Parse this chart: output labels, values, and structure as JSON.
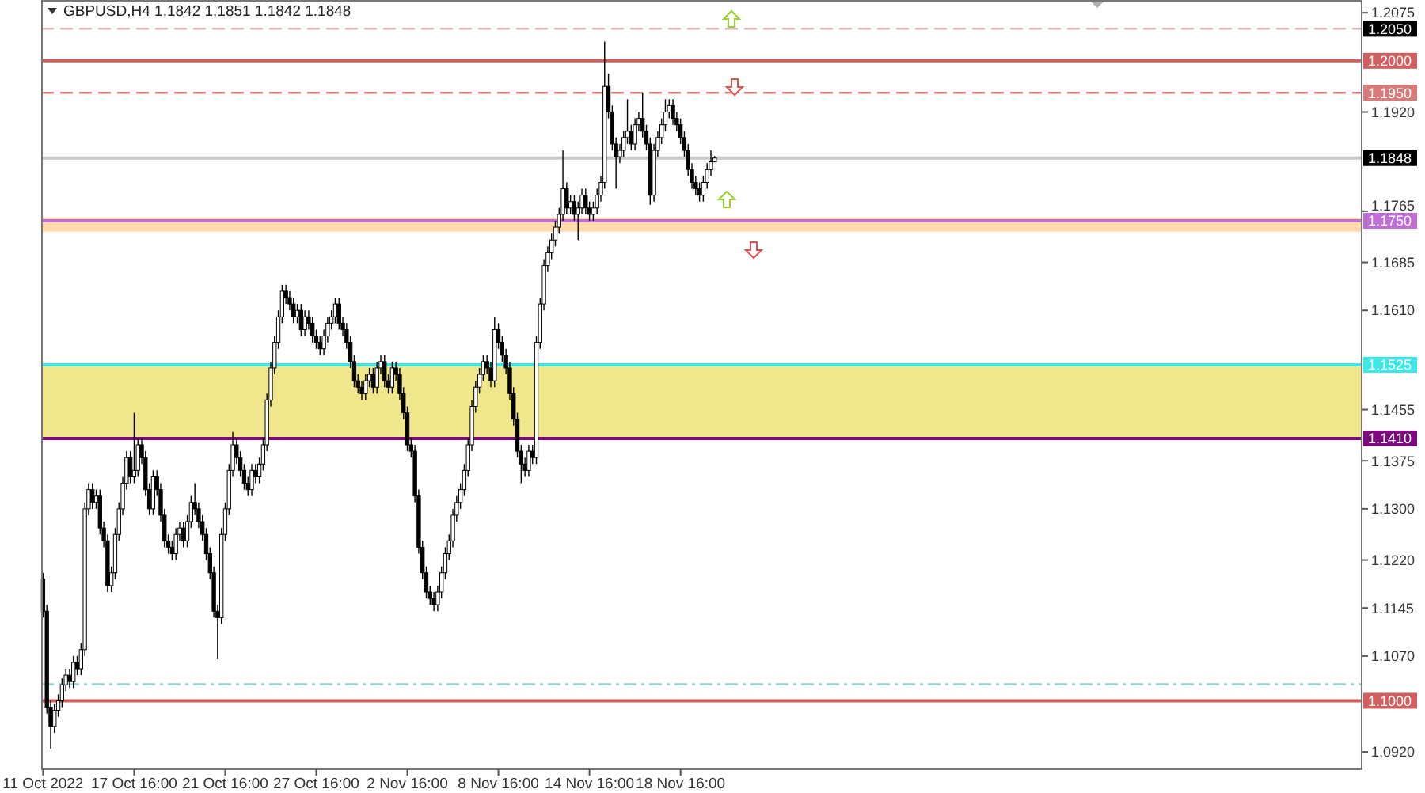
{
  "chart_data": {
    "type": "candlestick",
    "title": "GBPUSD,H4  1.1842 1.1851 1.1842 1.1848",
    "color": "#000000",
    "ylim": [
      1.0893,
      1.2095
    ],
    "yticks": [
      1.2075,
      {
        "value": 1.192,
        "label": "1.1920"
      },
      1.1765,
      1.1685,
      {
        "value": 1.161,
        "label": "1.1610"
      },
      1.1455,
      1.1375,
      {
        "value": 1.13,
        "label": "1.1300"
      },
      {
        "value": 1.122,
        "label": "1.1220"
      },
      1.1145,
      {
        "value": 1.107,
        "label": "1.1070"
      },
      {
        "value": 1.092,
        "label": "1.0920"
      }
    ],
    "grid": false,
    "categories": [
      "11 Oct 2022",
      null,
      null,
      null,
      null,
      null,
      null,
      null,
      null,
      null,
      null,
      null,
      null,
      null,
      null,
      null,
      null,
      null,
      null,
      null,
      null,
      null,
      null,
      null,
      "17 Oct 16:00",
      null,
      null,
      null,
      null,
      null,
      null,
      null,
      null,
      null,
      null,
      null,
      null,
      null,
      null,
      null,
      null,
      null,
      null,
      null,
      null,
      null,
      null,
      null,
      "21 Oct 16:00",
      null,
      null,
      null,
      null,
      null,
      null,
      null,
      null,
      null,
      null,
      null,
      null,
      null,
      null,
      null,
      null,
      null,
      null,
      null,
      null,
      null,
      null,
      null,
      "27 Oct 16:00",
      null,
      null,
      null,
      null,
      null,
      null,
      null,
      null,
      null,
      null,
      null,
      null,
      null,
      null,
      null,
      null,
      null,
      null,
      null,
      null,
      null,
      null,
      null,
      "2 Nov 16:00",
      null,
      null,
      null,
      null,
      null,
      null,
      null,
      null,
      null,
      null,
      null,
      null,
      null,
      null,
      null,
      null,
      null,
      null,
      null,
      null,
      null,
      null,
      null,
      "8 Nov 16:00",
      null,
      null,
      null,
      null,
      null,
      null,
      null,
      null,
      null,
      null,
      null,
      null,
      null,
      null,
      null,
      null,
      null,
      null,
      null,
      null,
      null,
      null,
      null,
      "14 Nov 16:00",
      null,
      null,
      null,
      null,
      null,
      null,
      null,
      null,
      null,
      null,
      null,
      null,
      null,
      null,
      null,
      null,
      null,
      null,
      null,
      null,
      null,
      null,
      null,
      "18 Nov 16:00",
      null,
      null,
      null,
      null,
      null,
      null,
      null,
      null,
      null,
      null,
      null,
      null,
      null,
      null,
      null,
      null,
      null,
      null,
      null,
      null,
      null,
      null,
      null,
      null,
      null,
      null,
      null,
      null,
      null,
      null,
      null,
      null,
      null,
      null,
      null,
      null,
      null,
      null,
      null,
      null,
      null,
      null,
      null,
      null,
      null,
      null,
      null,
      null,
      null,
      null,
      null,
      null,
      null,
      null,
      null,
      null,
      null,
      null,
      null,
      null,
      null,
      null,
      null,
      null,
      null,
      null,
      null,
      null,
      null,
      null,
      null,
      null,
      null,
      null,
      null,
      null,
      null,
      null,
      null,
      null,
      null,
      null,
      null,
      null,
      null,
      null,
      null,
      null,
      null,
      null,
      null,
      null,
      null,
      null,
      null,
      null,
      null,
      null,
      null,
      null,
      null,
      null,
      null,
      null,
      null,
      null,
      null,
      null,
      null,
      null,
      null,
      null,
      null,
      null,
      null,
      null,
      null,
      null,
      null,
      null,
      null,
      null,
      null,
      null,
      null,
      null,
      null,
      null,
      null,
      null,
      null,
      null,
      null,
      null,
      null,
      null,
      null,
      null,
      null,
      null,
      null,
      null,
      null,
      null,
      null,
      null,
      null,
      null,
      null,
      null,
      null,
      null,
      null,
      null,
      null,
      null,
      null,
      null,
      null,
      null,
      null,
      null,
      null,
      null,
      null,
      null,
      null,
      null,
      null,
      null,
      null,
      null,
      null,
      null,
      null,
      null,
      null,
      null,
      null
    ],
    "ohlc": [
      [
        1.119,
        1.12,
        1.113,
        1.114
      ],
      [
        1.114,
        1.115,
        1.098,
        1.099
      ],
      [
        1.099,
        1.1,
        1.0925,
        1.096
      ],
      [
        1.096,
        1.0995,
        1.095,
        1.0985
      ],
      [
        1.0985,
        1.101,
        1.0975,
        1.1
      ],
      [
        1.1,
        1.1035,
        1.099,
        1.1025
      ],
      [
        1.1025,
        1.105,
        1.1015,
        1.104
      ],
      [
        1.104,
        1.105,
        1.102,
        1.103
      ],
      [
        1.103,
        1.107,
        1.102,
        1.106
      ],
      [
        1.106,
        1.107,
        1.104,
        1.105
      ],
      [
        1.105,
        1.109,
        1.104,
        1.108
      ],
      [
        1.108,
        1.131,
        1.107,
        1.13
      ],
      [
        1.13,
        1.134,
        1.129,
        1.133
      ],
      [
        1.133,
        1.134,
        1.13,
        1.131
      ],
      [
        1.131,
        1.133,
        1.13,
        1.132
      ],
      [
        1.132,
        1.133,
        1.126,
        1.127
      ],
      [
        1.127,
        1.128,
        1.124,
        1.125
      ],
      [
        1.125,
        1.126,
        1.117,
        1.118
      ],
      [
        1.118,
        1.121,
        1.117,
        1.12
      ],
      [
        1.12,
        1.127,
        1.119,
        1.126
      ],
      [
        1.126,
        1.131,
        1.125,
        1.13
      ],
      [
        1.13,
        1.135,
        1.129,
        1.134
      ],
      [
        1.134,
        1.139,
        1.133,
        1.138
      ],
      [
        1.138,
        1.139,
        1.134,
        1.135
      ],
      [
        1.135,
        1.145,
        1.134,
        1.136
      ],
      [
        1.136,
        1.141,
        1.135,
        1.14
      ],
      [
        1.14,
        1.141,
        1.137,
        1.138
      ],
      [
        1.138,
        1.139,
        1.132,
        1.133
      ],
      [
        1.133,
        1.134,
        1.129,
        1.13
      ],
      [
        1.13,
        1.136,
        1.129,
        1.135
      ],
      [
        1.135,
        1.136,
        1.132,
        1.133
      ],
      [
        1.133,
        1.134,
        1.128,
        1.129
      ],
      [
        1.129,
        1.13,
        1.124,
        1.125
      ],
      [
        1.125,
        1.126,
        1.123,
        1.124
      ],
      [
        1.124,
        1.125,
        1.122,
        1.123
      ],
      [
        1.123,
        1.127,
        1.122,
        1.126
      ],
      [
        1.126,
        1.128,
        1.125,
        1.127
      ],
      [
        1.127,
        1.128,
        1.124,
        1.125
      ],
      [
        1.125,
        1.129,
        1.124,
        1.128
      ],
      [
        1.128,
        1.132,
        1.127,
        1.131
      ],
      [
        1.131,
        1.134,
        1.129,
        1.13
      ],
      [
        1.13,
        1.131,
        1.127,
        1.128
      ],
      [
        1.128,
        1.129,
        1.125,
        1.126
      ],
      [
        1.126,
        1.127,
        1.122,
        1.123
      ],
      [
        1.123,
        1.124,
        1.119,
        1.12
      ],
      [
        1.12,
        1.121,
        1.113,
        1.114
      ],
      [
        1.114,
        1.115,
        1.1065,
        1.113
      ],
      [
        1.113,
        1.127,
        1.112,
        1.126
      ],
      [
        1.126,
        1.131,
        1.125,
        1.13
      ],
      [
        1.13,
        1.137,
        1.129,
        1.136
      ],
      [
        1.136,
        1.142,
        1.135,
        1.14
      ],
      [
        1.14,
        1.141,
        1.137,
        1.138
      ],
      [
        1.138,
        1.139,
        1.135,
        1.136
      ],
      [
        1.136,
        1.137,
        1.133,
        1.134
      ],
      [
        1.134,
        1.135,
        1.132,
        1.133
      ],
      [
        1.133,
        1.137,
        1.132,
        1.136
      ],
      [
        1.136,
        1.137,
        1.134,
        1.135
      ],
      [
        1.135,
        1.138,
        1.134,
        1.137
      ],
      [
        1.137,
        1.141,
        1.136,
        1.14
      ],
      [
        1.14,
        1.148,
        1.139,
        1.147
      ],
      [
        1.147,
        1.153,
        1.146,
        1.152
      ],
      [
        1.152,
        1.157,
        1.151,
        1.156
      ],
      [
        1.156,
        1.161,
        1.155,
        1.16
      ],
      [
        1.16,
        1.165,
        1.159,
        1.164
      ],
      [
        1.164,
        1.165,
        1.162,
        1.163
      ],
      [
        1.163,
        1.164,
        1.161,
        1.162
      ],
      [
        1.162,
        1.163,
        1.159,
        1.16
      ],
      [
        1.16,
        1.162,
        1.159,
        1.161
      ],
      [
        1.161,
        1.162,
        1.157,
        1.158
      ],
      [
        1.158,
        1.161,
        1.157,
        1.16
      ],
      [
        1.16,
        1.161,
        1.158,
        1.159
      ],
      [
        1.159,
        1.16,
        1.156,
        1.157
      ],
      [
        1.157,
        1.158,
        1.155,
        1.156
      ],
      [
        1.156,
        1.157,
        1.154,
        1.155
      ],
      [
        1.155,
        1.158,
        1.154,
        1.157
      ],
      [
        1.157,
        1.16,
        1.156,
        1.159
      ],
      [
        1.159,
        1.161,
        1.158,
        1.16
      ],
      [
        1.16,
        1.163,
        1.159,
        1.162
      ],
      [
        1.162,
        1.163,
        1.158,
        1.159
      ],
      [
        1.159,
        1.16,
        1.157,
        1.158
      ],
      [
        1.158,
        1.159,
        1.155,
        1.156
      ],
      [
        1.156,
        1.157,
        1.152,
        1.153
      ],
      [
        1.153,
        1.154,
        1.149,
        1.15
      ],
      [
        1.15,
        1.151,
        1.148,
        1.149
      ],
      [
        1.149,
        1.15,
        1.147,
        1.148
      ],
      [
        1.148,
        1.151,
        1.147,
        1.15
      ],
      [
        1.15,
        1.152,
        1.149,
        1.151
      ],
      [
        1.151,
        1.152,
        1.148,
        1.149
      ],
      [
        1.149,
        1.153,
        1.148,
        1.152
      ],
      [
        1.152,
        1.154,
        1.151,
        1.153
      ],
      [
        1.153,
        1.154,
        1.149,
        1.15
      ],
      [
        1.15,
        1.151,
        1.148,
        1.149
      ],
      [
        1.149,
        1.153,
        1.148,
        1.152
      ],
      [
        1.152,
        1.153,
        1.15,
        1.151
      ],
      [
        1.151,
        1.152,
        1.147,
        1.148
      ],
      [
        1.148,
        1.149,
        1.144,
        1.145
      ],
      [
        1.145,
        1.146,
        1.139,
        1.14
      ],
      [
        1.14,
        1.141,
        1.138,
        1.139
      ],
      [
        1.139,
        1.14,
        1.131,
        1.132
      ],
      [
        1.132,
        1.133,
        1.123,
        1.124
      ],
      [
        1.124,
        1.125,
        1.119,
        1.12
      ],
      [
        1.12,
        1.121,
        1.116,
        1.117
      ],
      [
        1.117,
        1.118,
        1.115,
        1.116
      ],
      [
        1.116,
        1.117,
        1.114,
        1.115
      ],
      [
        1.115,
        1.118,
        1.114,
        1.117
      ],
      [
        1.117,
        1.121,
        1.116,
        1.12
      ],
      [
        1.12,
        1.124,
        1.119,
        1.123
      ],
      [
        1.123,
        1.126,
        1.122,
        1.125
      ],
      [
        1.125,
        1.13,
        1.124,
        1.129
      ],
      [
        1.129,
        1.132,
        1.128,
        1.131
      ],
      [
        1.131,
        1.134,
        1.13,
        1.133
      ],
      [
        1.133,
        1.137,
        1.132,
        1.136
      ],
      [
        1.136,
        1.141,
        1.135,
        1.14
      ],
      [
        1.14,
        1.147,
        1.139,
        1.146
      ],
      [
        1.146,
        1.15,
        1.145,
        1.149
      ],
      [
        1.149,
        1.152,
        1.148,
        1.151
      ],
      [
        1.151,
        1.154,
        1.15,
        1.153
      ],
      [
        1.153,
        1.154,
        1.151,
        1.152
      ],
      [
        1.152,
        1.153,
        1.149,
        1.15
      ],
      [
        1.15,
        1.16,
        1.149,
        1.158
      ],
      [
        1.158,
        1.159,
        1.155,
        1.156
      ],
      [
        1.156,
        1.157,
        1.153,
        1.154
      ],
      [
        1.154,
        1.155,
        1.151,
        1.152
      ],
      [
        1.152,
        1.153,
        1.147,
        1.148
      ],
      [
        1.148,
        1.149,
        1.143,
        1.144
      ],
      [
        1.144,
        1.145,
        1.138,
        1.139
      ],
      [
        1.139,
        1.14,
        1.134,
        1.137
      ],
      [
        1.137,
        1.138,
        1.135,
        1.136
      ],
      [
        1.136,
        1.14,
        1.135,
        1.139
      ],
      [
        1.139,
        1.14,
        1.137,
        1.138
      ],
      [
        1.138,
        1.157,
        1.137,
        1.156
      ],
      [
        1.156,
        1.163,
        1.155,
        1.162
      ],
      [
        1.162,
        1.169,
        1.161,
        1.168
      ],
      [
        1.168,
        1.171,
        1.167,
        1.17
      ],
      [
        1.17,
        1.173,
        1.169,
        1.172
      ],
      [
        1.172,
        1.175,
        1.171,
        1.174
      ],
      [
        1.174,
        1.177,
        1.173,
        1.176
      ],
      [
        1.176,
        1.186,
        1.175,
        1.18
      ],
      [
        1.18,
        1.181,
        1.176,
        1.177
      ],
      [
        1.177,
        1.179,
        1.176,
        1.178
      ],
      [
        1.178,
        1.179,
        1.175,
        1.176
      ],
      [
        1.176,
        1.178,
        1.172,
        1.177
      ],
      [
        1.177,
        1.18,
        1.176,
        1.179
      ],
      [
        1.179,
        1.18,
        1.176,
        1.177
      ],
      [
        1.177,
        1.178,
        1.175,
        1.176
      ],
      [
        1.176,
        1.178,
        1.175,
        1.177
      ],
      [
        1.177,
        1.18,
        1.176,
        1.179
      ],
      [
        1.179,
        1.182,
        1.178,
        1.181
      ],
      [
        1.181,
        1.203,
        1.18,
        1.196
      ],
      [
        1.196,
        1.198,
        1.191,
        1.192
      ],
      [
        1.192,
        1.193,
        1.186,
        1.187
      ],
      [
        1.187,
        1.188,
        1.18,
        1.185
      ],
      [
        1.185,
        1.187,
        1.184,
        1.186
      ],
      [
        1.186,
        1.189,
        1.185,
        1.188
      ],
      [
        1.188,
        1.194,
        1.187,
        1.189
      ],
      [
        1.189,
        1.19,
        1.186,
        1.187
      ],
      [
        1.187,
        1.191,
        1.186,
        1.19
      ],
      [
        1.19,
        1.192,
        1.189,
        1.191
      ],
      [
        1.191,
        1.195,
        1.188,
        1.189
      ],
      [
        1.189,
        1.19,
        1.186,
        1.187
      ],
      [
        1.187,
        1.188,
        1.1775,
        1.179
      ],
      [
        1.179,
        1.187,
        1.178,
        1.186
      ],
      [
        1.186,
        1.189,
        1.185,
        1.188
      ],
      [
        1.188,
        1.191,
        1.187,
        1.19
      ],
      [
        1.19,
        1.194,
        1.189,
        1.192
      ],
      [
        1.192,
        1.194,
        1.191,
        1.193
      ],
      [
        1.193,
        1.194,
        1.19,
        1.191
      ],
      [
        1.191,
        1.192,
        1.189,
        1.19
      ],
      [
        1.19,
        1.191,
        1.187,
        1.188
      ],
      [
        1.188,
        1.189,
        1.185,
        1.186
      ],
      [
        1.186,
        1.187,
        1.182,
        1.183
      ],
      [
        1.183,
        1.184,
        1.18,
        1.181
      ],
      [
        1.181,
        1.182,
        1.179,
        1.18
      ],
      [
        1.18,
        1.181,
        1.178,
        1.179
      ],
      [
        1.179,
        1.182,
        1.178,
        1.181
      ],
      [
        1.181,
        1.184,
        1.18,
        1.183
      ],
      [
        1.183,
        1.186,
        1.182,
        1.1842
      ],
      [
        1.1842,
        1.1851,
        1.1842,
        1.1848
      ],
      null,
      null,
      null,
      null,
      null,
      null,
      null,
      null,
      null,
      null,
      null,
      null,
      null,
      null,
      null,
      null,
      null,
      null,
      null,
      null,
      null,
      null,
      null,
      null,
      null,
      null,
      null,
      null,
      null,
      null,
      null,
      null,
      null,
      null,
      null,
      null,
      null,
      null,
      null,
      null,
      null,
      null,
      null,
      null,
      null,
      null,
      null,
      null,
      null,
      null,
      null,
      null,
      null,
      null,
      null,
      null,
      null,
      null,
      null,
      null,
      null,
      null,
      null,
      null,
      null,
      null,
      null,
      null,
      null,
      null,
      null,
      null,
      null,
      null,
      null,
      null,
      null,
      null,
      null,
      null,
      null,
      null,
      null,
      null,
      null,
      null,
      null,
      null,
      null,
      null,
      null,
      null,
      null,
      null,
      null,
      null,
      null,
      null,
      null,
      null,
      null,
      null,
      null,
      null,
      null,
      null,
      null,
      null,
      null,
      null,
      null,
      null,
      null,
      null,
      null,
      null,
      null,
      null,
      null,
      null,
      null,
      null,
      null,
      null,
      null,
      null,
      null,
      null,
      null,
      null,
      null,
      null,
      null,
      null,
      null,
      null,
      null,
      null,
      null,
      null,
      null,
      null,
      null,
      null,
      null,
      null,
      null,
      null,
      null,
      null,
      null,
      null,
      null,
      null,
      null,
      null,
      null,
      null,
      null,
      null,
      null,
      null,
      null,
      null,
      null,
      null,
      null,
      null,
      null,
      null
    ],
    "ref_lines": [
      {
        "axis": "y",
        "value": 1.205,
        "label": "1.2050",
        "color": "#e3b4b4",
        "line_style": "dashed"
      },
      {
        "axis": "y",
        "value": 1.2,
        "label": "1.2000",
        "color": "#d05f5f",
        "line_style": "solid"
      },
      {
        "axis": "y",
        "value": 1.195,
        "label": "1.1950",
        "color": "#d77a7a",
        "line_style": "dashed"
      },
      {
        "axis": "y",
        "value": 1.1848,
        "label": "1.1848",
        "color": "#c8c8c8",
        "line_style": "solid"
      },
      {
        "axis": "y",
        "value": 1.175,
        "label": "1.1750",
        "color": "#bf6fd4",
        "line_style": "solid"
      },
      {
        "axis": "y",
        "value": 1.1525,
        "label": "1.1525",
        "color": "#3ee6e6",
        "line_style": "solid"
      },
      {
        "axis": "y",
        "value": 1.141,
        "label": "1.1410",
        "color": "#7d0a7d",
        "line_style": "solid"
      },
      {
        "axis": "y",
        "value": 1.1026,
        "color": "#8fd3d3",
        "line_style": "dotted"
      },
      {
        "axis": "y",
        "value": 1.1,
        "label": "1.1000",
        "color": "#d05f5f",
        "line_style": "solid"
      }
    ],
    "bands": [
      {
        "axis": "y",
        "from": 1.141,
        "to": 1.1525,
        "color": "#f0e68c"
      },
      {
        "axis": "y",
        "from": 1.1733,
        "to": 1.1755,
        "color": "#ffd9a8"
      }
    ]
  }
}
